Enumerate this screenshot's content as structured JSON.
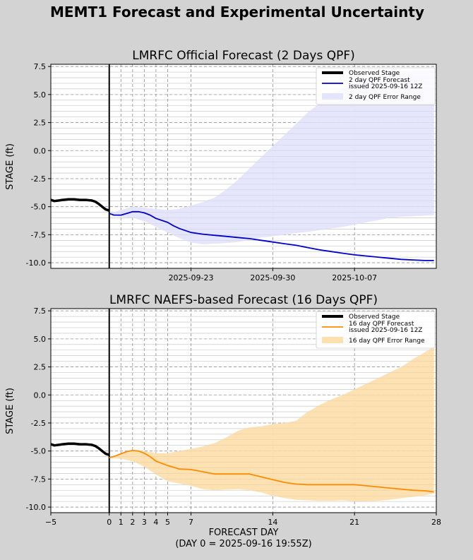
{
  "figure": {
    "title": "MEMT1 Forecast and Experimental Uncertainty",
    "xlabel": "FORECAST DAY",
    "xlabel_sub": "(DAY 0 = 2025-09-16 19:55Z)"
  },
  "colors": {
    "background": "#d3d3d3",
    "observed": "#000000",
    "official_line": "#0000cc",
    "official_band": "#e4e4fc",
    "naefs_line": "#ff8c00",
    "naefs_band": "#fedfad"
  },
  "chart_data": [
    {
      "type": "line",
      "title": "LMRFC Official Forecast (2 Days QPF)",
      "ylabel": "STAGE (ft)",
      "xlim": [
        -5,
        28
      ],
      "ylim": [
        -10.5,
        7.7
      ],
      "yticks": [
        "-10.0",
        "-7.5",
        "-5.0",
        "-2.5",
        "0.0",
        "2.5",
        "5.0",
        "7.5"
      ],
      "xticks": [
        "2025-09-23",
        "2025-09-30",
        "2025-10-07"
      ],
      "xtick_pos": [
        7,
        14,
        21
      ],
      "grid": true,
      "legend": "top-right",
      "legend_entries": [
        "Observed Stage",
        "2 day QPF Forecast",
        "issued 2025-09-16 12Z",
        "2 day QPF Error Range"
      ],
      "observed": {
        "name": "Observed Stage",
        "x": [
          -5,
          -4.7,
          -4.3,
          -4,
          -3.5,
          -3,
          -2.5,
          -2,
          -1.5,
          -1.2,
          -0.9,
          -0.6,
          -0.3,
          0
        ],
        "y": [
          -4.4,
          -4.5,
          -4.45,
          -4.4,
          -4.35,
          -4.35,
          -4.4,
          -4.4,
          -4.45,
          -4.55,
          -4.75,
          -5.0,
          -5.25,
          -5.35
        ]
      },
      "forecast": {
        "name": "2 day QPF Forecast",
        "x": [
          0,
          0.4,
          1,
          1.5,
          2,
          2.5,
          3,
          3.5,
          4,
          5,
          5.5,
          6,
          7,
          8,
          9,
          10,
          11,
          12,
          13,
          14,
          15,
          16,
          17,
          18,
          19,
          20,
          21,
          22,
          23,
          24,
          25,
          26,
          27,
          27.8
        ],
        "y": [
          -5.6,
          -5.75,
          -5.75,
          -5.6,
          -5.45,
          -5.45,
          -5.55,
          -5.75,
          -6.05,
          -6.4,
          -6.7,
          -6.95,
          -7.3,
          -7.45,
          -7.55,
          -7.65,
          -7.75,
          -7.85,
          -8.0,
          -8.15,
          -8.3,
          -8.45,
          -8.65,
          -8.85,
          -9.0,
          -9.15,
          -9.3,
          -9.4,
          -9.5,
          -9.6,
          -9.7,
          -9.75,
          -9.8,
          -9.8
        ]
      },
      "band": {
        "name": "2 day QPF Error Range",
        "x": [
          0,
          1,
          2,
          3,
          4,
          5,
          6,
          7,
          8,
          9,
          10,
          11,
          12,
          13,
          14,
          15,
          16,
          17,
          18,
          19,
          20,
          21,
          22,
          23,
          24,
          25,
          26,
          27,
          27.8
        ],
        "upper": [
          -5.6,
          -5.3,
          -5.0,
          -5.1,
          -5.2,
          -5.3,
          -5.2,
          -4.9,
          -4.6,
          -4.2,
          -3.5,
          -2.6,
          -1.6,
          -0.6,
          0.4,
          1.4,
          2.4,
          3.4,
          4.2,
          5.0,
          5.6,
          6.1,
          6.5,
          6.8,
          7.0,
          7.1,
          7.2,
          7.2,
          7.2
        ],
        "lower": [
          -5.6,
          -5.9,
          -6.0,
          -6.3,
          -6.8,
          -7.3,
          -7.8,
          -8.2,
          -8.35,
          -8.3,
          -8.25,
          -8.15,
          -7.95,
          -7.75,
          -7.65,
          -7.5,
          -7.35,
          -7.25,
          -7.1,
          -6.95,
          -6.8,
          -6.6,
          -6.4,
          -6.2,
          -6.0,
          -5.9,
          -5.85,
          -5.8,
          -5.75
        ]
      }
    },
    {
      "type": "line",
      "title": "LMRFC NAEFS-based Forecast (16 Days QPF)",
      "ylabel": "STAGE (ft)",
      "xlim": [
        -5,
        28
      ],
      "ylim": [
        -10.5,
        7.7
      ],
      "yticks": [
        "-10.0",
        "-7.5",
        "-5.0",
        "-2.5",
        "0.0",
        "2.5",
        "5.0",
        "7.5"
      ],
      "xticks": [
        "−5",
        "0",
        "1",
        "2",
        "3",
        "4",
        "5",
        "7",
        "14",
        "21",
        "28"
      ],
      "xtick_pos": [
        -5,
        0,
        1,
        2,
        3,
        4,
        5,
        7,
        14,
        21,
        28
      ],
      "grid": true,
      "legend": "top-right",
      "legend_entries": [
        "Observed Stage",
        "16 day QPF Forecast",
        "issued 2025-09-16 12Z",
        "16 day QPF Error Range"
      ],
      "observed": {
        "name": "Observed Stage",
        "x": [
          -5,
          -4.7,
          -4.3,
          -4,
          -3.5,
          -3,
          -2.5,
          -2,
          -1.5,
          -1.2,
          -0.9,
          -0.6,
          -0.3,
          0
        ],
        "y": [
          -4.4,
          -4.5,
          -4.45,
          -4.4,
          -4.35,
          -4.35,
          -4.4,
          -4.4,
          -4.45,
          -4.55,
          -4.75,
          -5.0,
          -5.25,
          -5.35
        ]
      },
      "forecast": {
        "name": "16 day QPF Forecast",
        "x": [
          0,
          0.5,
          1,
          1.5,
          2,
          2.5,
          3,
          3.5,
          4,
          5,
          6,
          7,
          8,
          9,
          10,
          11,
          12,
          13,
          14,
          15,
          16,
          17,
          18,
          19,
          20,
          21,
          22,
          23,
          24,
          25,
          26,
          27,
          27.8
        ],
        "y": [
          -5.6,
          -5.45,
          -5.25,
          -5.05,
          -4.95,
          -5.0,
          -5.2,
          -5.5,
          -5.9,
          -6.3,
          -6.6,
          -6.65,
          -6.85,
          -7.05,
          -7.05,
          -7.05,
          -7.05,
          -7.3,
          -7.55,
          -7.8,
          -7.95,
          -8.0,
          -8.0,
          -8.0,
          -8.0,
          -8.0,
          -8.1,
          -8.2,
          -8.3,
          -8.4,
          -8.5,
          -8.55,
          -8.65
        ]
      },
      "band": {
        "name": "16 day QPF Error Range",
        "x": [
          0,
          1,
          2,
          3,
          4,
          5,
          6,
          7,
          8,
          9,
          10,
          11,
          12,
          13,
          14,
          15,
          16,
          17,
          18,
          19,
          20,
          21,
          22,
          23,
          24,
          25,
          26,
          27,
          27.8
        ],
        "upper": [
          -5.6,
          -5.2,
          -4.9,
          -5.0,
          -5.2,
          -5.2,
          -5.0,
          -4.8,
          -4.6,
          -4.3,
          -3.8,
          -3.2,
          -2.9,
          -2.8,
          -2.6,
          -2.5,
          -2.3,
          -1.5,
          -0.9,
          -0.4,
          0.0,
          0.5,
          1.0,
          1.5,
          2.0,
          2.5,
          3.2,
          3.8,
          4.3
        ],
        "lower": [
          -5.6,
          -5.7,
          -5.9,
          -6.4,
          -7.1,
          -7.7,
          -7.9,
          -8.1,
          -8.4,
          -8.5,
          -8.45,
          -8.4,
          -8.5,
          -8.7,
          -9.0,
          -9.2,
          -9.35,
          -9.4,
          -9.45,
          -9.45,
          -9.4,
          -9.5,
          -9.5,
          -9.45,
          -9.35,
          -9.2,
          -9.1,
          -8.95,
          -8.8
        ]
      }
    }
  ]
}
